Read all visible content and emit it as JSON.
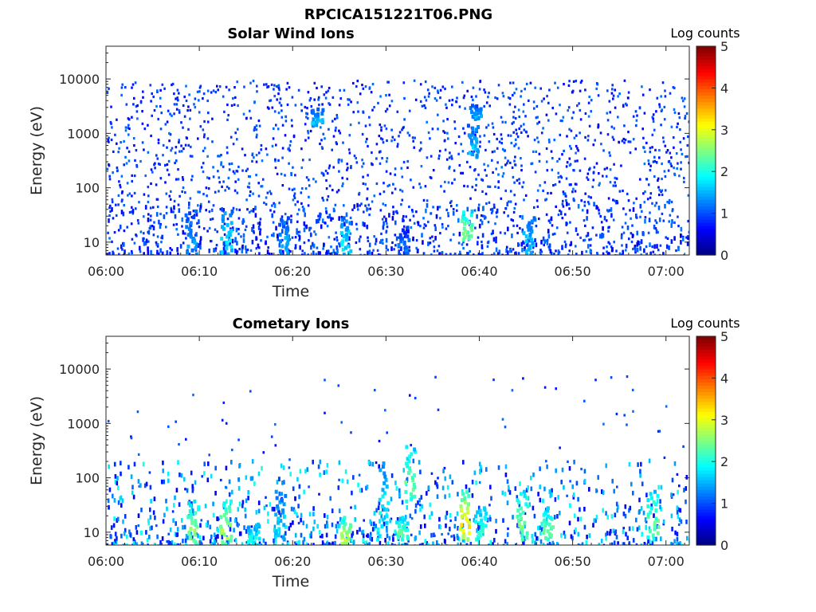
{
  "figure": {
    "title": "RPCICA151221T06.PNG"
  },
  "chart_data": [
    {
      "type": "heatmap",
      "title": "Solar Wind Ions",
      "xlabel": "Time",
      "ylabel": "Energy (eV)",
      "x_ticks": [
        "06:00",
        "06:10",
        "06:20",
        "06:30",
        "06:40",
        "06:50",
        "07:00"
      ],
      "x_range_minutes": [
        0,
        62.5
      ],
      "y_ticks": [
        "10",
        "100",
        "1000",
        "10000"
      ],
      "y_scale": "log",
      "y_range": [
        5.8,
        40000
      ],
      "colorbar": {
        "label": "Log counts",
        "ticks": [
          "0",
          "1",
          "2",
          "3",
          "4",
          "5"
        ],
        "range": [
          0,
          5
        ],
        "colormap": "jet"
      },
      "features": [
        {
          "t": 9.0,
          "e_low": 6,
          "e_high": 40,
          "log_counts": 1.4
        },
        {
          "t": 12.8,
          "e_low": 6,
          "e_high": 40,
          "log_counts": 1.8
        },
        {
          "t": 18.8,
          "e_low": 6,
          "e_high": 30,
          "log_counts": 1.5
        },
        {
          "t": 22.5,
          "e_low": 1500,
          "e_high": 3000,
          "log_counts": 1.6
        },
        {
          "t": 25.5,
          "e_low": 6,
          "e_high": 30,
          "log_counts": 1.8
        },
        {
          "t": 31.8,
          "e_low": 6,
          "e_high": 20,
          "log_counts": 1.2
        },
        {
          "t": 38.5,
          "e_low": 12,
          "e_high": 40,
          "log_counts": 2.5
        },
        {
          "t": 39.2,
          "e_low": 400,
          "e_high": 1500,
          "log_counts": 1.6
        },
        {
          "t": 39.5,
          "e_low": 2000,
          "e_high": 3500,
          "log_counts": 1.5
        },
        {
          "t": 45.2,
          "e_low": 6,
          "e_high": 30,
          "log_counts": 1.6
        }
      ]
    },
    {
      "type": "heatmap",
      "title": "Cometary Ions",
      "xlabel": "Time",
      "ylabel": "Energy (eV)",
      "x_ticks": [
        "06:00",
        "06:10",
        "06:20",
        "06:30",
        "06:40",
        "06:50",
        "07:00"
      ],
      "x_range_minutes": [
        0,
        62.5
      ],
      "y_ticks": [
        "10",
        "100",
        "1000",
        "10000"
      ],
      "y_scale": "log",
      "y_range": [
        5.8,
        40000
      ],
      "colorbar": {
        "label": "Log counts",
        "ticks": [
          "0",
          "1",
          "2",
          "3",
          "4",
          "5"
        ],
        "range": [
          0,
          5
        ],
        "colormap": "jet"
      },
      "features": [
        {
          "t": 9.2,
          "e_low": 6,
          "e_high": 40,
          "log_counts": 2.6
        },
        {
          "t": 12.7,
          "e_low": 6,
          "e_high": 40,
          "log_counts": 2.7
        },
        {
          "t": 15.7,
          "e_low": 6,
          "e_high": 15,
          "log_counts": 2.0
        },
        {
          "t": 18.5,
          "e_low": 8,
          "e_high": 60,
          "log_counts": 1.7
        },
        {
          "t": 25.5,
          "e_low": 6,
          "e_high": 20,
          "log_counts": 2.8
        },
        {
          "t": 29.5,
          "e_low": 8,
          "e_high": 200,
          "log_counts": 1.9
        },
        {
          "t": 31.6,
          "e_low": 8,
          "e_high": 20,
          "log_counts": 2.3
        },
        {
          "t": 32.5,
          "e_low": 40,
          "e_high": 400,
          "log_counts": 2.4
        },
        {
          "t": 38.2,
          "e_low": 8,
          "e_high": 60,
          "log_counts": 3.2
        },
        {
          "t": 40.0,
          "e_low": 8,
          "e_high": 30,
          "log_counts": 2.2
        },
        {
          "t": 44.5,
          "e_low": 8,
          "e_high": 60,
          "log_counts": 2.5
        },
        {
          "t": 47.3,
          "e_low": 8,
          "e_high": 30,
          "log_counts": 2.4
        },
        {
          "t": 58.5,
          "e_low": 8,
          "e_high": 60,
          "log_counts": 2.4
        }
      ]
    }
  ]
}
